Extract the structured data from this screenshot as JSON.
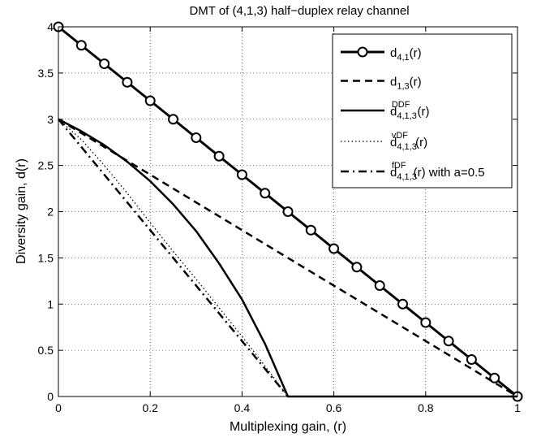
{
  "chart_data": {
    "type": "line",
    "title": "DMT of (4,1,3) half−duplex relay channel",
    "xlabel": "Multiplexing gain, (r)",
    "ylabel": "Diversity gain, d(r)",
    "xlim": [
      0,
      1
    ],
    "ylim": [
      0,
      4
    ],
    "xticks": [
      0,
      0.2,
      0.4,
      0.6,
      0.8,
      1
    ],
    "xtick_labels": [
      "0",
      "0.2",
      "0.4",
      "0.6",
      "0.8",
      "1"
    ],
    "yticks": [
      0,
      0.5,
      1,
      1.5,
      2,
      2.5,
      3,
      3.5,
      4
    ],
    "ytick_labels": [
      "0",
      "0.5",
      "1",
      "1.5",
      "2",
      "2.5",
      "3",
      "3.5",
      "4"
    ],
    "grid": true,
    "legend_position": "top-right",
    "series": [
      {
        "id": "d41",
        "legend_base": "d",
        "legend_sub": "4,1",
        "legend_sup": "",
        "legend_tail": "(r)",
        "style": "solid-thick",
        "marker": "circle",
        "color": "#000000",
        "points": [
          [
            0,
            4
          ],
          [
            0.05,
            3.8
          ],
          [
            0.1,
            3.6
          ],
          [
            0.15,
            3.4
          ],
          [
            0.2,
            3.2
          ],
          [
            0.25,
            3.0
          ],
          [
            0.3,
            2.8
          ],
          [
            0.35,
            2.6
          ],
          [
            0.4,
            2.4
          ],
          [
            0.45,
            2.2
          ],
          [
            0.5,
            2.0
          ],
          [
            0.55,
            1.8
          ],
          [
            0.6,
            1.6
          ],
          [
            0.65,
            1.4
          ],
          [
            0.7,
            1.2
          ],
          [
            0.75,
            1.0
          ],
          [
            0.8,
            0.8
          ],
          [
            0.85,
            0.6
          ],
          [
            0.9,
            0.4
          ],
          [
            0.95,
            0.2
          ],
          [
            1,
            0
          ]
        ]
      },
      {
        "id": "d13",
        "legend_base": "d",
        "legend_sub": "1,3",
        "legend_sup": "",
        "legend_tail": "(r)",
        "style": "dashed",
        "marker": "none",
        "color": "#000000",
        "points": [
          [
            0,
            3
          ],
          [
            1,
            0
          ]
        ]
      },
      {
        "id": "ddf",
        "legend_base": "d",
        "legend_sub": "4,1,3",
        "legend_sup": "DDF",
        "legend_tail": "(r)",
        "style": "solid",
        "marker": "none",
        "color": "#000000",
        "points": [
          [
            0,
            3
          ],
          [
            0.05,
            2.87
          ],
          [
            0.1,
            2.72
          ],
          [
            0.15,
            2.54
          ],
          [
            0.2,
            2.33
          ],
          [
            0.25,
            2.08
          ],
          [
            0.3,
            1.79
          ],
          [
            0.35,
            1.44
          ],
          [
            0.4,
            1.05
          ],
          [
            0.45,
            0.57
          ],
          [
            0.5,
            0
          ],
          [
            0.6,
            0
          ],
          [
            0.7,
            0
          ],
          [
            0.8,
            0
          ],
          [
            0.9,
            0
          ],
          [
            1,
            0
          ]
        ]
      },
      {
        "id": "vdf",
        "legend_base": "d",
        "legend_sub": "4,1,3",
        "legend_sup": "vDF",
        "legend_tail": "(r)",
        "style": "dotted",
        "marker": "none",
        "color": "#000000",
        "points": [
          [
            0,
            3
          ],
          [
            0.05,
            2.78
          ],
          [
            0.1,
            2.5
          ],
          [
            0.15,
            2.2
          ],
          [
            0.2,
            1.88
          ],
          [
            0.25,
            1.57
          ],
          [
            0.3,
            1.27
          ],
          [
            0.35,
            0.96
          ],
          [
            0.4,
            0.65
          ],
          [
            0.45,
            0.33
          ],
          [
            0.5,
            0
          ]
        ]
      },
      {
        "id": "fdf",
        "legend_base": "d",
        "legend_sub": "4,1,3",
        "legend_sup": "fDF",
        "legend_tail": "(r) with a=0.5",
        "style": "dashdot",
        "marker": "none",
        "color": "#000000",
        "points": [
          [
            0,
            3
          ],
          [
            0.5,
            0
          ]
        ]
      }
    ]
  }
}
